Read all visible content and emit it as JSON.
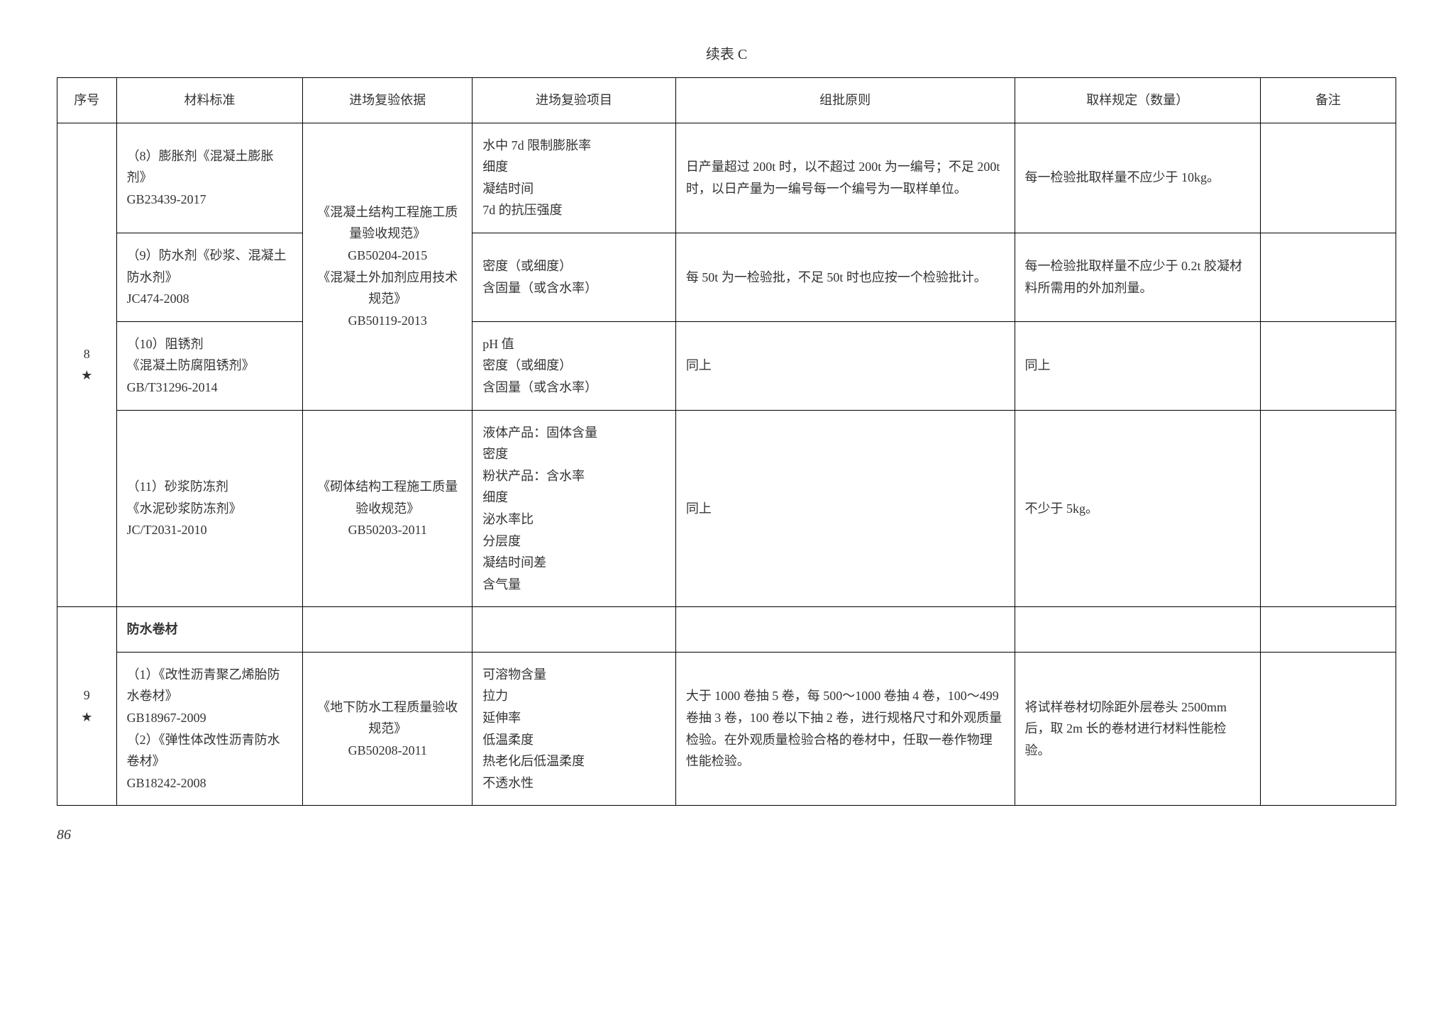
{
  "title": "续表 C",
  "page_number": "86",
  "headers": {
    "seq": "序号",
    "std": "材料标准",
    "basis": "进场复验依据",
    "item": "进场复验项目",
    "batch": "组批原则",
    "sampling": "取样规定（数量）",
    "note": "备注"
  },
  "rows": {
    "r8": {
      "seq": "8\n★",
      "basis_a": "《混凝土结构工程施工质量验收规范》\nGB50204-2015\n《混凝土外加剂应用技术规范》\nGB50119-2013",
      "basis_b": "《砌体结构工程施工质量验收规范》\nGB50203-2011",
      "sub1": {
        "std": "（8）膨胀剂《混凝土膨胀剂》\nGB23439-2017",
        "item": "水中 7d 限制膨胀率\n细度\n凝结时间\n7d 的抗压强度",
        "batch": "日产量超过 200t 时，以不超过 200t 为一编号；不足 200t 时，以日产量为一编号每一个编号为一取样单位。",
        "sampling": "每一检验批取样量不应少于 10kg。"
      },
      "sub2": {
        "std": "（9）防水剂《砂浆、混凝土防水剂》\nJC474-2008",
        "item": "密度（或细度）\n含固量（或含水率）",
        "batch": "每 50t 为一检验批，不足 50t 时也应按一个检验批计。",
        "sampling": "每一检验批取样量不应少于 0.2t 胶凝材料所需用的外加剂量。"
      },
      "sub3": {
        "std": "（10）阻锈剂\n《混凝土防腐阻锈剂》GB/T31296-2014",
        "item": "pH 值\n密度（或细度）\n含固量（或含水率）",
        "batch": "同上",
        "sampling": "同上"
      },
      "sub4": {
        "std": "（11）砂浆防冻剂\n《水泥砂浆防冻剂》\nJC/T2031-2010",
        "item": "液体产品：固体含量\n密度\n粉状产品：含水率\n细度\n泌水率比\n分层度\n凝结时间差\n含气量",
        "batch": "同上",
        "sampling": "不少于 5kg。"
      }
    },
    "r9": {
      "seq": "9\n★",
      "header": "防水卷材",
      "basis": "《地下防水工程质量验收规范》\nGB50208-2011",
      "sub1": {
        "std": "（1）《改性沥青聚乙烯胎防水卷材》\nGB18967-2009\n（2）《弹性体改性沥青防水卷材》\nGB18242-2008",
        "item": "可溶物含量\n拉力\n延伸率\n低温柔度\n热老化后低温柔度\n不透水性",
        "batch": "大于 1000 卷抽 5 卷，每 500～1000 卷抽 4 卷，100～499 卷抽 3 卷，100 卷以下抽 2 卷，进行规格尺寸和外观质量检验。在外观质量检验合格的卷材中，任取一卷作物理性能检验。",
        "sampling": "将试样卷材切除距外层卷头 2500mm 后，取 2m 长的卷材进行材料性能检验。"
      }
    }
  }
}
